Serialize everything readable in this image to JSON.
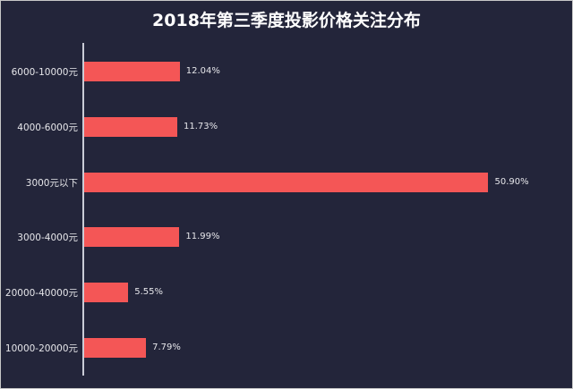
{
  "chart_data": {
    "type": "bar",
    "orientation": "horizontal",
    "title": "2018年第三季度投影价格关注分布",
    "xlabel": "",
    "ylabel": "",
    "categories": [
      "6000-10000元",
      "4000-6000元",
      "3000元以下",
      "3000-4000元",
      "20000-40000元",
      "10000-20000元"
    ],
    "values": [
      12.04,
      11.73,
      50.9,
      11.99,
      5.55,
      7.79
    ],
    "value_labels": [
      "12.04%",
      "11.73%",
      "50.90%",
      "11.99%",
      "5.55%",
      "7.79%"
    ],
    "unit": "%",
    "grid": false,
    "legend": null,
    "colors": {
      "bar": "#f45656",
      "background": "#23253a",
      "text": "#e6e6ea",
      "axis": "#c9cbd6"
    }
  }
}
